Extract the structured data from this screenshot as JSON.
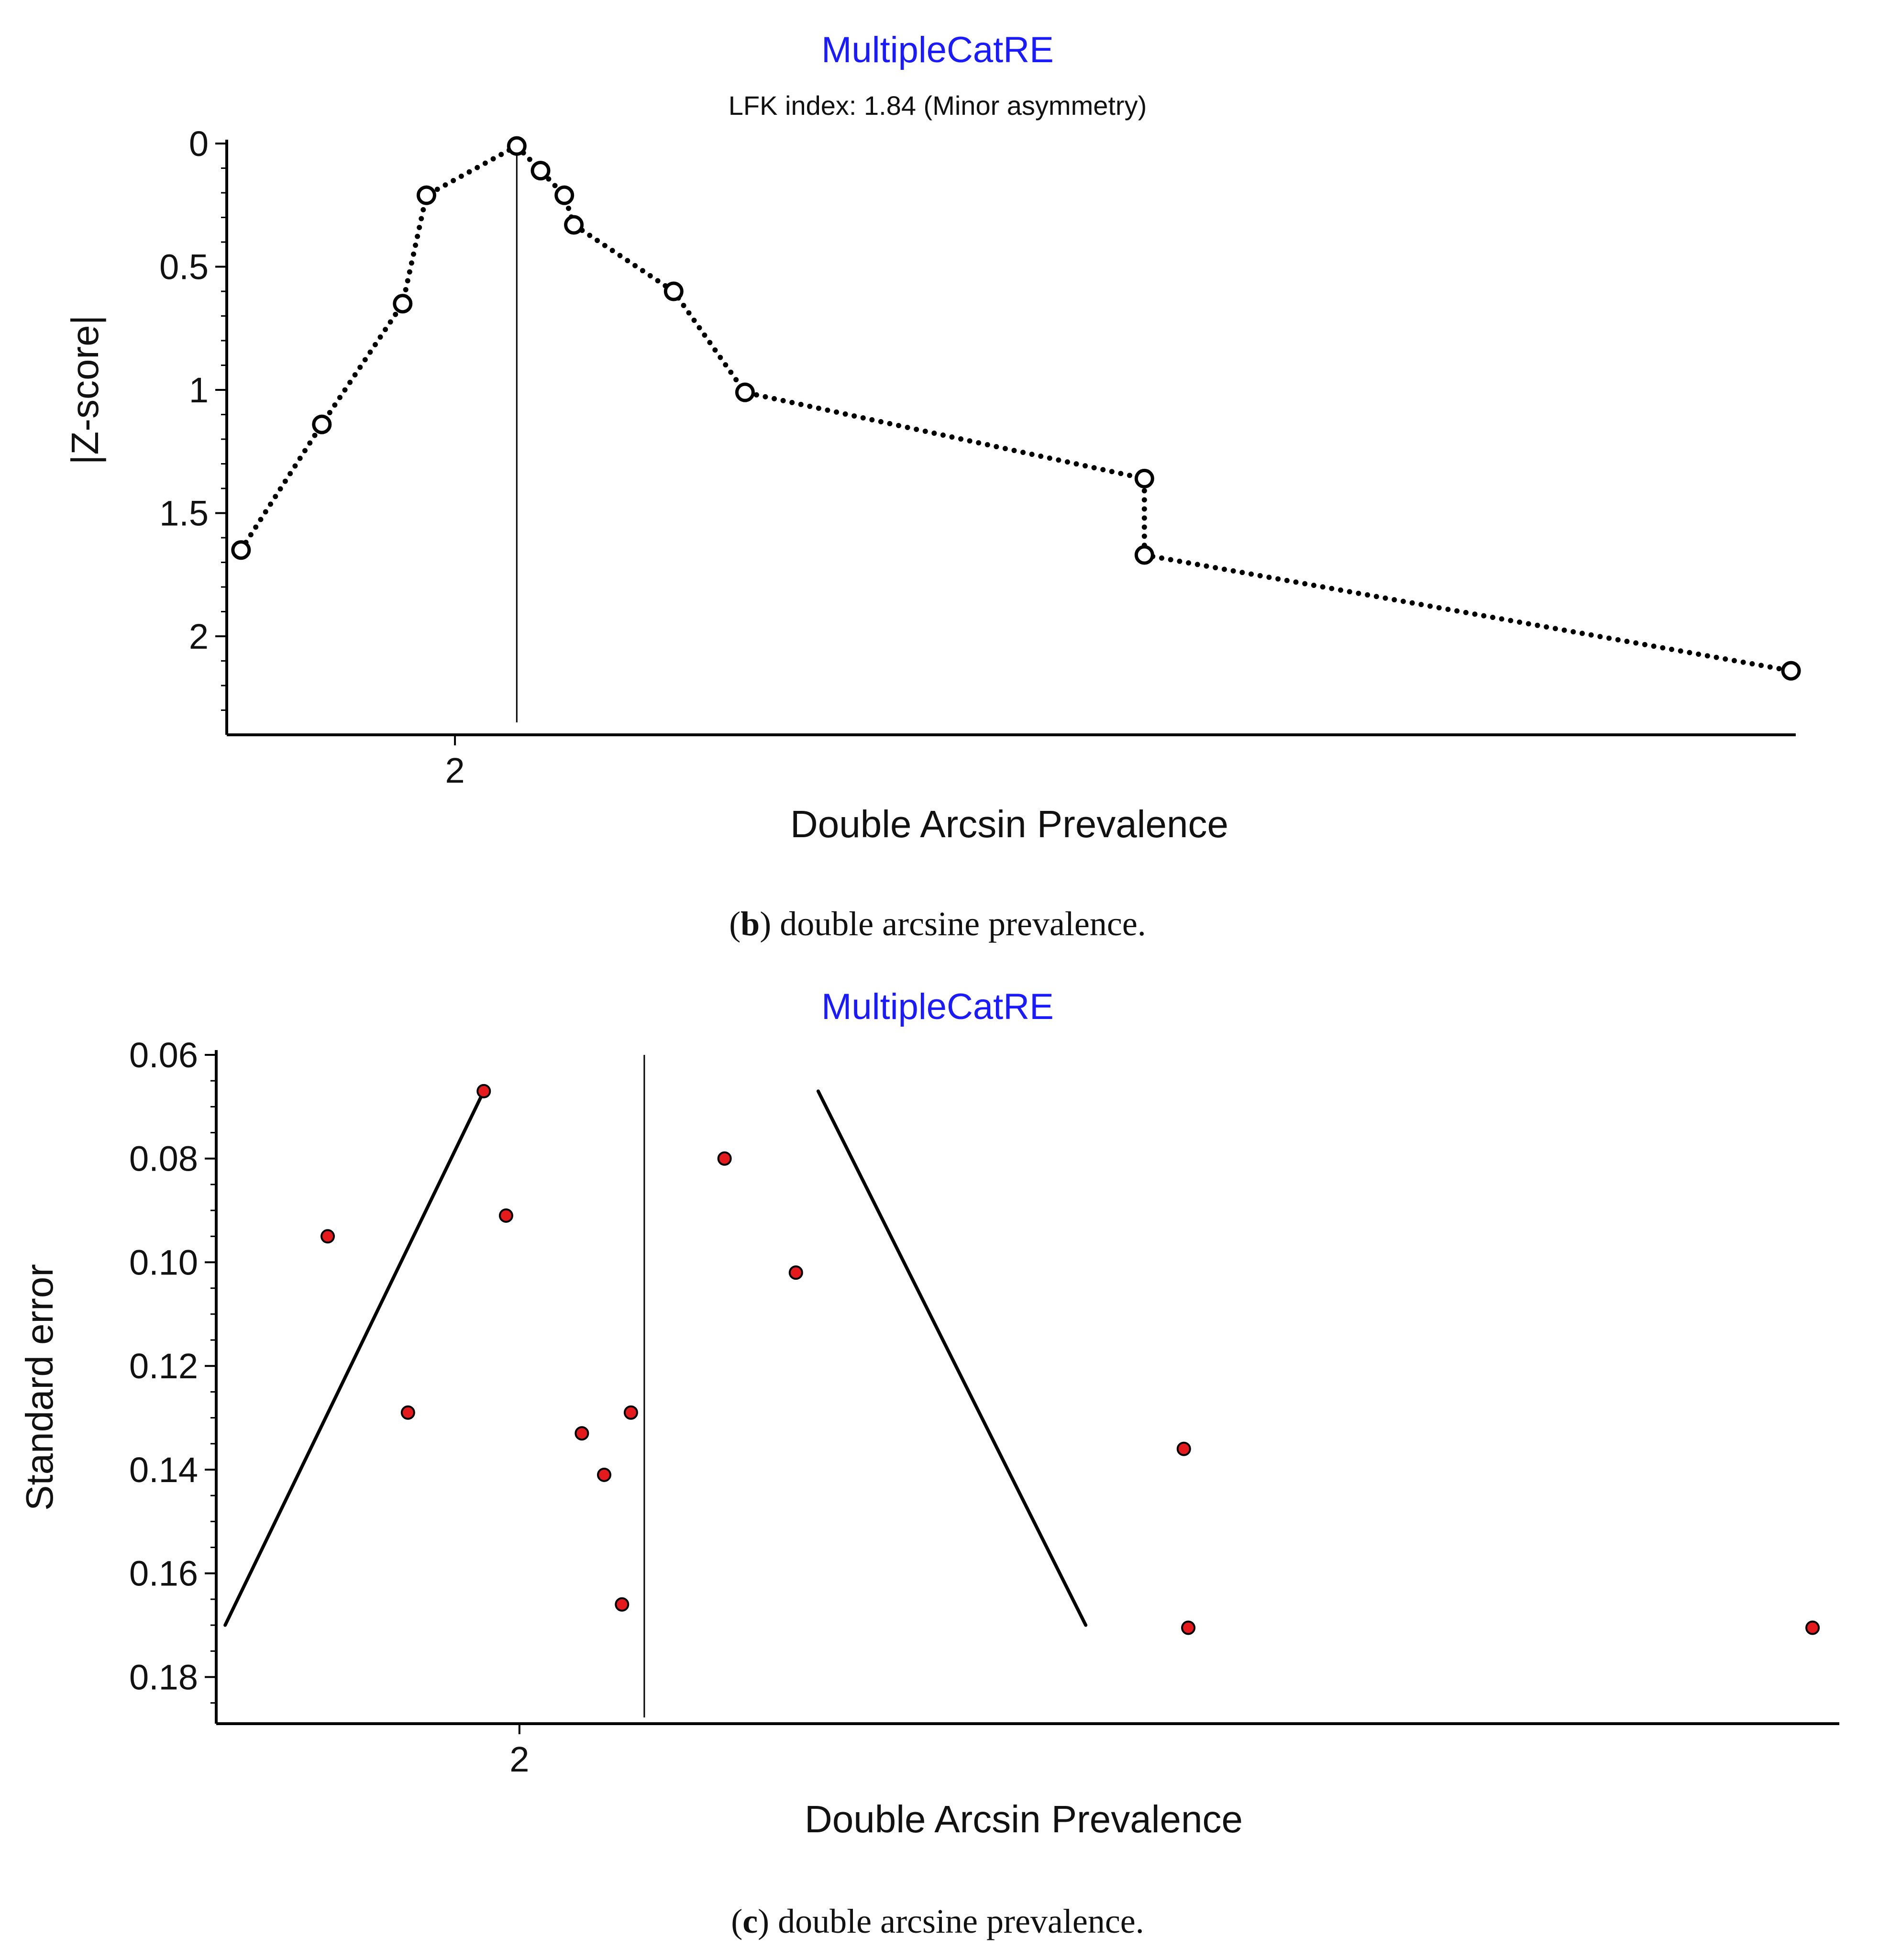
{
  "chart_data": [
    {
      "type": "line",
      "title": "MultipleCatRE",
      "subtitle": "LFK index: 1.84 (Minor asymmetry)",
      "xlabel": "Double Arcsin Prevalence",
      "ylabel": "|Z-score|",
      "x_ticks": [
        2
      ],
      "y_ticks": [
        0,
        0.5,
        1,
        1.5,
        2
      ],
      "xlim": [
        1.52,
        4.82
      ],
      "ylim": [
        0,
        2.4
      ],
      "y_inverted": true,
      "reference_x": 2.13,
      "x": [
        1.55,
        1.72,
        1.89,
        1.94,
        2.13,
        2.18,
        2.23,
        2.25,
        2.46,
        2.61,
        3.45,
        3.45,
        4.81
      ],
      "values": [
        1.65,
        1.14,
        0.65,
        0.21,
        0.01,
        0.11,
        0.21,
        0.33,
        0.6,
        1.01,
        1.36,
        1.67,
        2.14
      ],
      "caption_letter": "b",
      "caption_text": "double arcsine prevalence.",
      "caption_open": "(",
      "caption_close": ") "
    },
    {
      "type": "scatter",
      "title": "MultipleCatRE",
      "xlabel": "Double Arcsin Prevalence",
      "ylabel": "Standard error",
      "x_ticks": [
        2
      ],
      "y_ticks": [
        0.06,
        0.08,
        0.1,
        0.12,
        0.14,
        0.16,
        0.18
      ],
      "xlim": [
        1.32,
        4.96
      ],
      "ylim": [
        0.06,
        0.189
      ],
      "y_inverted": true,
      "reference_x": 2.28,
      "funnel": {
        "left": [
          [
            1.34,
            0.17
          ],
          [
            1.92,
            0.067
          ]
        ],
        "right": [
          [
            2.67,
            0.067
          ],
          [
            3.27,
            0.17
          ]
        ]
      },
      "x": [
        1.92,
        1.57,
        1.97,
        1.75,
        2.14,
        2.19,
        2.25,
        2.23,
        2.46,
        2.62,
        3.49,
        3.5,
        4.9
      ],
      "values": [
        0.067,
        0.095,
        0.091,
        0.129,
        0.133,
        0.141,
        0.129,
        0.166,
        0.08,
        0.102,
        0.136,
        0.1705,
        0.1705
      ],
      "point_color": "#e41a1c",
      "caption_letter": "c",
      "caption_text": "double arcsine prevalence.",
      "caption_open": "(",
      "caption_close": ") "
    }
  ]
}
